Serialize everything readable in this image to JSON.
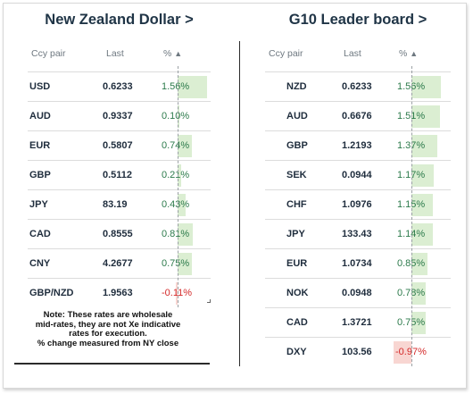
{
  "left": {
    "title": "New Zealand Dollar >",
    "headers": {
      "pair": "Ccy pair",
      "last": "Last",
      "pct": "%"
    },
    "rows": [
      {
        "pair": "USD",
        "last": "0.6233",
        "pct": "1.56%",
        "value": 1.56
      },
      {
        "pair": "AUD",
        "last": "0.9337",
        "pct": "0.10%",
        "value": 0.1
      },
      {
        "pair": "EUR",
        "last": "0.5807",
        "pct": "0.74%",
        "value": 0.74
      },
      {
        "pair": "GBP",
        "last": "0.5112",
        "pct": "0.21%",
        "value": 0.21
      },
      {
        "pair": "JPY",
        "last": "83.19",
        "pct": "0.43%",
        "value": 0.43
      },
      {
        "pair": "CAD",
        "last": "0.8555",
        "pct": "0.81%",
        "value": 0.81
      },
      {
        "pair": "CNY",
        "last": "4.2677",
        "pct": "0.75%",
        "value": 0.75
      },
      {
        "pair": "GBP/NZD",
        "last": "1.9563",
        "pct": "-0.11%",
        "value": -0.11
      }
    ],
    "note_lines": [
      "Note: These rates are wholesale",
      "mid-rates, they are not Xe indicative",
      "rates for execution.",
      "% change measured from NY close"
    ]
  },
  "right": {
    "title": "G10 Leader board >",
    "headers": {
      "pair": "Ccy pair",
      "last": "Last",
      "pct": "%"
    },
    "rows": [
      {
        "pair": "NZD",
        "last": "0.6233",
        "pct": "1.56%",
        "value": 1.56
      },
      {
        "pair": "AUD",
        "last": "0.6676",
        "pct": "1.51%",
        "value": 1.51
      },
      {
        "pair": "GBP",
        "last": "1.2193",
        "pct": "1.37%",
        "value": 1.37
      },
      {
        "pair": "SEK",
        "last": "0.0944",
        "pct": "1.17%",
        "value": 1.17
      },
      {
        "pair": "CHF",
        "last": "1.0976",
        "pct": "1.15%",
        "value": 1.15
      },
      {
        "pair": "JPY",
        "last": "133.43",
        "pct": "1.14%",
        "value": 1.14
      },
      {
        "pair": "EUR",
        "last": "1.0734",
        "pct": "0.85%",
        "value": 0.85
      },
      {
        "pair": "NOK",
        "last": "0.0948",
        "pct": "0.78%",
        "value": 0.78
      },
      {
        "pair": "CAD",
        "last": "1.3721",
        "pct": "0.75%",
        "value": 0.75
      },
      {
        "pair": "DXY",
        "last": "103.56",
        "pct": "-0.97%",
        "value": -0.97
      }
    ]
  },
  "colors": {
    "positive_bar": "#dbeed2",
    "negative_bar": "#f8d6d2",
    "positive_text": "#2c7a4b",
    "negative_text": "#d42a2a"
  },
  "icons": {
    "sort": "triangle-up"
  }
}
